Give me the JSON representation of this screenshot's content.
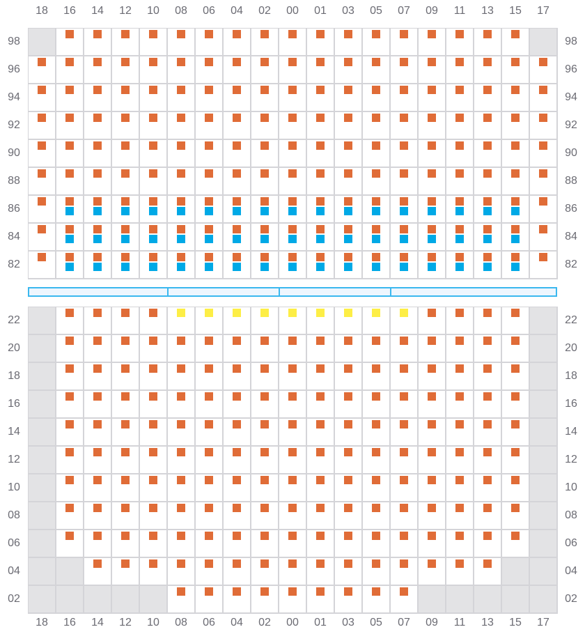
{
  "columns": [
    "18",
    "16",
    "14",
    "12",
    "10",
    "08",
    "06",
    "04",
    "02",
    "00",
    "01",
    "03",
    "05",
    "07",
    "09",
    "11",
    "13",
    "15",
    "17"
  ],
  "colors": {
    "orange": "#e06c37",
    "blue": "#00a9e6",
    "yellow": "#fdee46",
    "unavailable": "#e3e3e5",
    "divider": "#3bb8ef"
  },
  "legend_codes": {
    "g": "unavailable",
    "o": "orange marker",
    "ob": "orange and blue markers",
    "y": "yellow marker"
  },
  "top_section": {
    "rows": [
      {
        "label": "98",
        "cells": [
          "g",
          "o",
          "o",
          "o",
          "o",
          "o",
          "o",
          "o",
          "o",
          "o",
          "o",
          "o",
          "o",
          "o",
          "o",
          "o",
          "o",
          "o",
          "g"
        ]
      },
      {
        "label": "96",
        "cells": [
          "o",
          "o",
          "o",
          "o",
          "o",
          "o",
          "o",
          "o",
          "o",
          "o",
          "o",
          "o",
          "o",
          "o",
          "o",
          "o",
          "o",
          "o",
          "o"
        ]
      },
      {
        "label": "94",
        "cells": [
          "o",
          "o",
          "o",
          "o",
          "o",
          "o",
          "o",
          "o",
          "o",
          "o",
          "o",
          "o",
          "o",
          "o",
          "o",
          "o",
          "o",
          "o",
          "o"
        ]
      },
      {
        "label": "92",
        "cells": [
          "o",
          "o",
          "o",
          "o",
          "o",
          "o",
          "o",
          "o",
          "o",
          "o",
          "o",
          "o",
          "o",
          "o",
          "o",
          "o",
          "o",
          "o",
          "o"
        ]
      },
      {
        "label": "90",
        "cells": [
          "o",
          "o",
          "o",
          "o",
          "o",
          "o",
          "o",
          "o",
          "o",
          "o",
          "o",
          "o",
          "o",
          "o",
          "o",
          "o",
          "o",
          "o",
          "o"
        ]
      },
      {
        "label": "88",
        "cells": [
          "o",
          "o",
          "o",
          "o",
          "o",
          "o",
          "o",
          "o",
          "o",
          "o",
          "o",
          "o",
          "o",
          "o",
          "o",
          "o",
          "o",
          "o",
          "o"
        ]
      },
      {
        "label": "86",
        "cells": [
          "o",
          "ob",
          "ob",
          "ob",
          "ob",
          "ob",
          "ob",
          "ob",
          "ob",
          "ob",
          "ob",
          "ob",
          "ob",
          "ob",
          "ob",
          "ob",
          "ob",
          "ob",
          "o"
        ]
      },
      {
        "label": "84",
        "cells": [
          "o",
          "ob",
          "ob",
          "ob",
          "ob",
          "ob",
          "ob",
          "ob",
          "ob",
          "ob",
          "ob",
          "ob",
          "ob",
          "ob",
          "ob",
          "ob",
          "ob",
          "ob",
          "o"
        ]
      },
      {
        "label": "82",
        "cells": [
          "o",
          "ob",
          "ob",
          "ob",
          "ob",
          "ob",
          "ob",
          "ob",
          "ob",
          "ob",
          "ob",
          "ob",
          "ob",
          "ob",
          "ob",
          "ob",
          "ob",
          "ob",
          "o"
        ]
      }
    ]
  },
  "bottom_section": {
    "rows": [
      {
        "label": "22",
        "cells": [
          "g",
          "o",
          "o",
          "o",
          "o",
          "y",
          "y",
          "y",
          "y",
          "y",
          "y",
          "y",
          "y",
          "y",
          "o",
          "o",
          "o",
          "o",
          "g"
        ]
      },
      {
        "label": "20",
        "cells": [
          "g",
          "o",
          "o",
          "o",
          "o",
          "o",
          "o",
          "o",
          "o",
          "o",
          "o",
          "o",
          "o",
          "o",
          "o",
          "o",
          "o",
          "o",
          "g"
        ]
      },
      {
        "label": "18",
        "cells": [
          "g",
          "o",
          "o",
          "o",
          "o",
          "o",
          "o",
          "o",
          "o",
          "o",
          "o",
          "o",
          "o",
          "o",
          "o",
          "o",
          "o",
          "o",
          "g"
        ]
      },
      {
        "label": "16",
        "cells": [
          "g",
          "o",
          "o",
          "o",
          "o",
          "o",
          "o",
          "o",
          "o",
          "o",
          "o",
          "o",
          "o",
          "o",
          "o",
          "o",
          "o",
          "o",
          "g"
        ]
      },
      {
        "label": "14",
        "cells": [
          "g",
          "o",
          "o",
          "o",
          "o",
          "o",
          "o",
          "o",
          "o",
          "o",
          "o",
          "o",
          "o",
          "o",
          "o",
          "o",
          "o",
          "o",
          "g"
        ]
      },
      {
        "label": "12",
        "cells": [
          "g",
          "o",
          "o",
          "o",
          "o",
          "o",
          "o",
          "o",
          "o",
          "o",
          "o",
          "o",
          "o",
          "o",
          "o",
          "o",
          "o",
          "o",
          "g"
        ]
      },
      {
        "label": "10",
        "cells": [
          "g",
          "o",
          "o",
          "o",
          "o",
          "o",
          "o",
          "o",
          "o",
          "o",
          "o",
          "o",
          "o",
          "o",
          "o",
          "o",
          "o",
          "o",
          "g"
        ]
      },
      {
        "label": "08",
        "cells": [
          "g",
          "o",
          "o",
          "o",
          "o",
          "o",
          "o",
          "o",
          "o",
          "o",
          "o",
          "o",
          "o",
          "o",
          "o",
          "o",
          "o",
          "o",
          "g"
        ]
      },
      {
        "label": "06",
        "cells": [
          "g",
          "o",
          "o",
          "o",
          "o",
          "o",
          "o",
          "o",
          "o",
          "o",
          "o",
          "o",
          "o",
          "o",
          "o",
          "o",
          "o",
          "o",
          "g"
        ]
      },
      {
        "label": "04",
        "cells": [
          "g",
          "g",
          "o",
          "o",
          "o",
          "o",
          "o",
          "o",
          "o",
          "o",
          "o",
          "o",
          "o",
          "o",
          "o",
          "o",
          "o",
          "g",
          "g"
        ]
      },
      {
        "label": "02",
        "cells": [
          "g",
          "g",
          "g",
          "g",
          "g",
          "o",
          "o",
          "o",
          "o",
          "o",
          "o",
          "o",
          "o",
          "o",
          "g",
          "g",
          "g",
          "g",
          "g"
        ]
      }
    ]
  }
}
